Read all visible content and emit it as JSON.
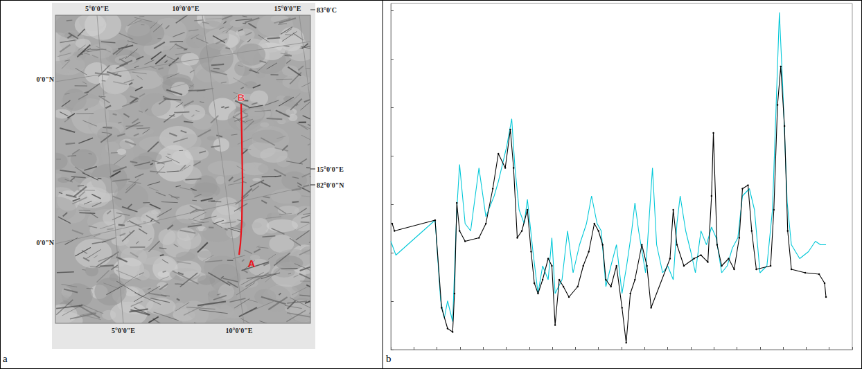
{
  "panel_labels": [
    "a",
    "b"
  ],
  "map": {
    "top_labels": [
      "5°0'0\"E",
      "10°0'0\"E",
      "15°0'0\"E"
    ],
    "bottom_labels": [
      "5°0'0\"E",
      "10°0'0\"E"
    ],
    "left_labels": [
      "0'0\"N",
      "0'0\"N"
    ],
    "right_labels": [
      "83°0'C",
      "15°0'0\"E",
      "82°0'0\"N"
    ],
    "route": {
      "start": "A",
      "end": "B",
      "color": "#e8141c"
    }
  },
  "chart_data": {
    "type": "line",
    "xlim": [
      0,
      100
    ],
    "ylim": [
      0,
      100
    ],
    "xticks": [
      0,
      5,
      10,
      15,
      20,
      25,
      30,
      35,
      40,
      45,
      50,
      55,
      60,
      65,
      70,
      75,
      80,
      85,
      90,
      95,
      100
    ],
    "yticks": [
      0,
      14,
      28,
      42,
      56,
      70,
      84,
      98
    ],
    "grid": false,
    "tick_labels": false,
    "series": [
      {
        "color": "#00c8d8",
        "marker": "none",
        "line_style": "solid",
        "x": [
          0.0,
          1.1,
          9.6,
          10.8,
          11.6,
          12.3,
          13.4,
          14.3,
          14.9,
          16.1,
          17.3,
          19.1,
          20.6,
          22.4,
          23.3,
          25.1,
          26.2,
          26.9,
          27.8,
          28.9,
          29.6,
          30.8,
          31.9,
          32.9,
          34.1,
          34.9,
          35.6,
          37.1,
          38.3,
          39.5,
          40.9,
          42.4,
          43.5,
          44.7,
          45.6,
          46.6,
          47.7,
          48.9,
          50.1,
          51.1,
          52.2,
          52.9,
          53.7,
          55.2,
          56.7,
          57.6,
          58.9,
          60.0,
          61.2,
          62.0,
          62.7,
          63.9,
          65.0,
          66.0,
          67.2,
          68.4,
          69.5,
          70.5,
          71.7,
          72.9,
          74.0,
          75.2,
          76.2,
          77.7,
          78.8,
          80.0,
          81.5,
          82.7,
          83.5,
          84.2,
          84.9,
          85.9,
          86.8,
          88.6,
          90.5,
          92.0,
          93.1,
          94.3
        ],
        "values": [
          31.3,
          27.3,
          37.4,
          14.1,
          9.1,
          14.1,
          8.1,
          40.4,
          53.5,
          36.4,
          34.3,
          52.5,
          38.4,
          44.4,
          48.5,
          58.6,
          66.7,
          52.5,
          40.4,
          36.4,
          43.4,
          28.3,
          16.2,
          24.2,
          20.2,
          32.3,
          16.2,
          20.2,
          34.3,
          22.2,
          30.3,
          36.4,
          44.4,
          36.4,
          34.3,
          18.2,
          24.2,
          30.3,
          16.2,
          24.2,
          34.3,
          42.4,
          34.3,
          22.2,
          52.5,
          30.3,
          22.2,
          24.2,
          20.2,
          36.4,
          44.4,
          34.3,
          28.3,
          22.2,
          34.3,
          30.3,
          35.4,
          32.3,
          22.2,
          24.2,
          29.3,
          32.3,
          44.4,
          46.5,
          40.4,
          22.2,
          24.2,
          40.4,
          70.7,
          97.4,
          76.8,
          42.4,
          30.3,
          26.3,
          28.3,
          31.3,
          30.3,
          30.3
        ]
      },
      {
        "color": "#000000",
        "marker": "dot",
        "line_style": "solid",
        "x": [
          0.3,
          0.8,
          9.6,
          11.0,
          12.3,
          13.4,
          13.8,
          14.3,
          14.9,
          16.1,
          19.1,
          20.6,
          22.1,
          23.3,
          24.8,
          25.9,
          26.6,
          27.4,
          28.4,
          29.6,
          30.4,
          31.1,
          31.9,
          32.9,
          34.1,
          34.9,
          35.6,
          36.5,
          37.4,
          38.6,
          40.5,
          41.7,
          42.9,
          44.1,
          45.0,
          45.9,
          46.6,
          47.7,
          48.9,
          50.1,
          51.0,
          51.9,
          52.9,
          54.4,
          55.5,
          56.4,
          60.5,
          61.2,
          62.0,
          63.5,
          65.7,
          67.2,
          68.7,
          69.5,
          69.9,
          70.7,
          71.7,
          73.2,
          74.4,
          75.5,
          76.2,
          77.4,
          78.2,
          79.2,
          82.3,
          83.0,
          83.8,
          84.5,
          85.3,
          86.0,
          86.8,
          89.8,
          92.8,
          94.0,
          94.3
        ],
        "values": [
          36.4,
          34.3,
          37.4,
          12.1,
          6.1,
          5.1,
          16.2,
          42.4,
          34.3,
          31.3,
          32.3,
          36.4,
          46.5,
          56.6,
          52.5,
          63.6,
          52.5,
          32.3,
          34.3,
          40.4,
          28.3,
          19.2,
          16.2,
          20.2,
          26.3,
          24.2,
          7.1,
          20.2,
          18.2,
          15.2,
          18.2,
          24.2,
          28.3,
          36.4,
          34.3,
          30.3,
          20.2,
          18.2,
          24.2,
          12.1,
          2.0,
          16.2,
          20.2,
          30.3,
          24.2,
          12.1,
          26.3,
          40.4,
          30.3,
          24.2,
          26.3,
          27.3,
          25.3,
          44.4,
          62.6,
          30.3,
          24.2,
          26.3,
          23.2,
          32.3,
          46.5,
          47.5,
          34.3,
          23.2,
          24.2,
          40.4,
          70.7,
          81.8,
          64.6,
          34.3,
          23.2,
          22.2,
          21.8,
          19.2,
          15.2
        ]
      }
    ]
  }
}
